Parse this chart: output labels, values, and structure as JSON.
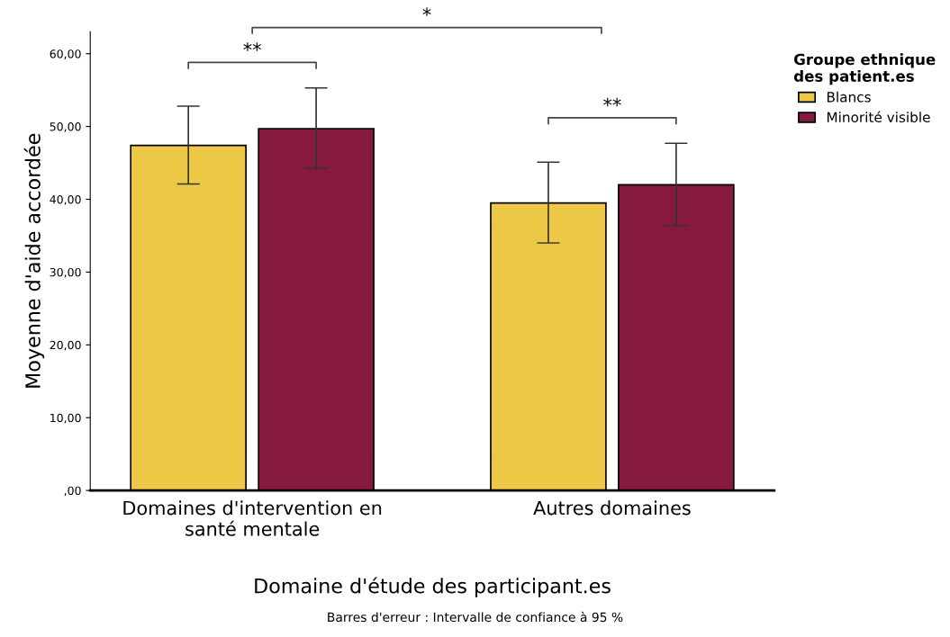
{
  "chart_data": {
    "type": "bar",
    "xlabel": "Domaine d'étude des participant.es",
    "ylabel": "Moyenne d'aide accordée",
    "categories": [
      "Domaines d'intervention en\nsanté mentale",
      "Autres domaines"
    ],
    "series": [
      {
        "name": "Blancs",
        "color": "#ecc846",
        "values": [
          47.4,
          39.5
        ],
        "errors": [
          [
            42.1,
            52.8
          ],
          [
            34.0,
            45.1
          ]
        ]
      },
      {
        "name": "Minorité visible",
        "color": "#861a3c",
        "values": [
          49.7,
          42.0
        ],
        "errors": [
          [
            44.3,
            55.3
          ],
          [
            36.4,
            47.7
          ]
        ]
      }
    ],
    "legend_title": "Groupe ethnique\ndes patient.es",
    "legend": "right",
    "ylim": [
      0,
      63
    ],
    "yticks": [
      {
        "value": 0,
        "label": ",00"
      },
      {
        "value": 10,
        "label": "10,00"
      },
      {
        "value": 20,
        "label": "20,00"
      },
      {
        "value": 30,
        "label": "30,00"
      },
      {
        "value": 40,
        "label": "40,00"
      },
      {
        "value": 50,
        "label": "50,00"
      },
      {
        "value": 60,
        "label": "60,00"
      }
    ],
    "grid": false,
    "annotations": [
      "**",
      "*",
      "**",
      "Barres d'erreur : Intervalle de confiance à 95 %"
    ]
  }
}
